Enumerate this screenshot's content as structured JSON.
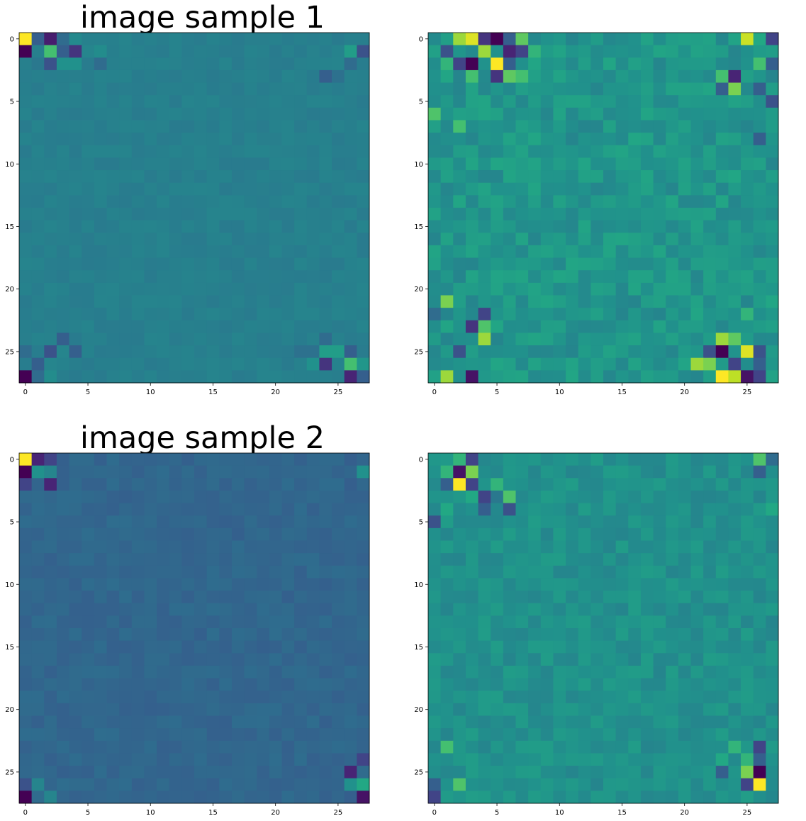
{
  "figure": {
    "titles": [
      "image sample 1",
      "",
      "image sample 2",
      ""
    ]
  },
  "chart_data": [
    {
      "type": "heatmap",
      "title": "image sample 1",
      "rows": 28,
      "cols": 28,
      "xticks": [
        0,
        5,
        10,
        15,
        20,
        25
      ],
      "yticks": [
        0,
        5,
        10,
        15,
        20,
        25
      ],
      "colormap": "viridis",
      "vrange": [
        0,
        1
      ],
      "base": 0.43,
      "noise": 0.02,
      "cells": [
        [
          0,
          0,
          1.0
        ],
        [
          0,
          1,
          0.3
        ],
        [
          0,
          2,
          0.08
        ],
        [
          0,
          3,
          0.35
        ],
        [
          0,
          4,
          0.47
        ],
        [
          1,
          0,
          0.0
        ],
        [
          1,
          1,
          0.43
        ],
        [
          1,
          2,
          0.7
        ],
        [
          1,
          3,
          0.3
        ],
        [
          1,
          4,
          0.15
        ],
        [
          1,
          5,
          0.45
        ],
        [
          1,
          6,
          0.48
        ],
        [
          1,
          26,
          0.55
        ],
        [
          1,
          27,
          0.25
        ],
        [
          2,
          1,
          0.4
        ],
        [
          2,
          2,
          0.25
        ],
        [
          2,
          3,
          0.5
        ],
        [
          2,
          4,
          0.5
        ],
        [
          2,
          6,
          0.35
        ],
        [
          2,
          26,
          0.35
        ],
        [
          3,
          24,
          0.3
        ],
        [
          3,
          25,
          0.37
        ],
        [
          24,
          3,
          0.3
        ],
        [
          24,
          24,
          0.35
        ],
        [
          25,
          0,
          0.35
        ],
        [
          25,
          2,
          0.25
        ],
        [
          25,
          3,
          0.45
        ],
        [
          25,
          4,
          0.3
        ],
        [
          25,
          22,
          0.37
        ],
        [
          25,
          23,
          0.37
        ],
        [
          25,
          24,
          0.55
        ],
        [
          25,
          25,
          0.55
        ],
        [
          25,
          26,
          0.3
        ],
        [
          26,
          1,
          0.3
        ],
        [
          26,
          2,
          0.45
        ],
        [
          26,
          23,
          0.5
        ],
        [
          26,
          24,
          0.15
        ],
        [
          26,
          26,
          0.7
        ],
        [
          26,
          27,
          0.52
        ],
        [
          27,
          0,
          0.0
        ],
        [
          27,
          1,
          0.35
        ],
        [
          27,
          2,
          0.48
        ],
        [
          27,
          26,
          0.1
        ],
        [
          27,
          27,
          0.3
        ]
      ]
    },
    {
      "type": "heatmap",
      "title": "",
      "rows": 28,
      "cols": 28,
      "xticks": [
        0,
        5,
        10,
        15,
        20,
        25
      ],
      "yticks": [
        0,
        5,
        10,
        15,
        20,
        25
      ],
      "colormap": "viridis",
      "vrange": [
        0,
        1
      ],
      "base": 0.52,
      "noise": 0.07,
      "cells": [
        [
          0,
          2,
          0.85
        ],
        [
          0,
          3,
          0.95
        ],
        [
          0,
          4,
          0.15
        ],
        [
          0,
          5,
          0.0
        ],
        [
          0,
          6,
          0.3
        ],
        [
          0,
          7,
          0.75
        ],
        [
          0,
          25,
          0.92
        ],
        [
          0,
          26,
          0.6
        ],
        [
          0,
          27,
          0.2
        ],
        [
          1,
          1,
          0.25
        ],
        [
          1,
          4,
          0.85
        ],
        [
          1,
          5,
          0.5
        ],
        [
          1,
          6,
          0.1
        ],
        [
          1,
          7,
          0.2
        ],
        [
          1,
          8,
          0.65
        ],
        [
          1,
          24,
          0.45
        ],
        [
          1,
          27,
          0.55
        ],
        [
          2,
          1,
          0.65
        ],
        [
          2,
          2,
          0.2
        ],
        [
          2,
          3,
          0.0
        ],
        [
          2,
          5,
          1.0
        ],
        [
          2,
          6,
          0.3
        ],
        [
          2,
          26,
          0.7
        ],
        [
          2,
          27,
          0.3
        ],
        [
          3,
          2,
          0.45
        ],
        [
          3,
          3,
          0.7
        ],
        [
          3,
          5,
          0.15
        ],
        [
          3,
          6,
          0.75
        ],
        [
          3,
          7,
          0.7
        ],
        [
          3,
          23,
          0.7
        ],
        [
          3,
          24,
          0.1
        ],
        [
          3,
          27,
          0.45
        ],
        [
          4,
          23,
          0.3
        ],
        [
          4,
          24,
          0.8
        ],
        [
          4,
          26,
          0.3
        ],
        [
          5,
          27,
          0.25
        ],
        [
          6,
          0,
          0.72
        ],
        [
          7,
          2,
          0.7
        ],
        [
          8,
          26,
          0.3
        ],
        [
          21,
          1,
          0.8
        ],
        [
          22,
          0,
          0.35
        ],
        [
          22,
          4,
          0.2
        ],
        [
          22,
          25,
          0.65
        ],
        [
          23,
          3,
          0.15
        ],
        [
          23,
          4,
          0.72
        ],
        [
          24,
          4,
          0.85
        ],
        [
          24,
          23,
          0.85
        ],
        [
          24,
          24,
          0.75
        ],
        [
          25,
          2,
          0.25
        ],
        [
          25,
          22,
          0.25
        ],
        [
          25,
          23,
          0.0
        ],
        [
          25,
          25,
          0.95
        ],
        [
          25,
          26,
          0.25
        ],
        [
          26,
          21,
          0.85
        ],
        [
          26,
          22,
          0.8
        ],
        [
          26,
          24,
          0.2
        ],
        [
          26,
          26,
          0.3
        ],
        [
          27,
          1,
          0.85
        ],
        [
          27,
          3,
          0.05
        ],
        [
          27,
          23,
          1.0
        ],
        [
          27,
          24,
          0.9
        ],
        [
          27,
          25,
          0.05
        ],
        [
          27,
          26,
          0.2
        ]
      ]
    },
    {
      "type": "heatmap",
      "title": "image sample 2",
      "rows": 28,
      "cols": 28,
      "xticks": [
        0,
        5,
        10,
        15,
        20,
        25
      ],
      "yticks": [
        0,
        5,
        10,
        15,
        20,
        25
      ],
      "colormap": "viridis",
      "vrange": [
        0,
        1
      ],
      "base": 0.33,
      "noise": 0.025,
      "cells": [
        [
          0,
          0,
          1.0
        ],
        [
          0,
          1,
          0.1
        ],
        [
          0,
          2,
          0.2
        ],
        [
          0,
          26,
          0.3
        ],
        [
          1,
          0,
          0.0
        ],
        [
          1,
          1,
          0.5
        ],
        [
          1,
          2,
          0.45
        ],
        [
          1,
          27,
          0.5
        ],
        [
          2,
          0,
          0.2
        ],
        [
          2,
          2,
          0.1
        ],
        [
          2,
          26,
          0.3
        ],
        [
          24,
          27,
          0.2
        ],
        [
          25,
          26,
          0.1
        ],
        [
          26,
          0,
          0.25
        ],
        [
          26,
          1,
          0.45
        ],
        [
          26,
          26,
          0.5
        ],
        [
          26,
          27,
          0.6
        ],
        [
          27,
          0,
          0.0
        ],
        [
          27,
          1,
          0.35
        ],
        [
          27,
          2,
          0.45
        ],
        [
          27,
          26,
          0.3
        ],
        [
          27,
          27,
          0.05
        ]
      ]
    },
    {
      "type": "heatmap",
      "title": "",
      "rows": 28,
      "cols": 28,
      "xticks": [
        0,
        5,
        10,
        15,
        20,
        25
      ],
      "yticks": [
        0,
        5,
        10,
        15,
        20,
        25
      ],
      "colormap": "viridis",
      "vrange": [
        0,
        1
      ],
      "base": 0.5,
      "noise": 0.05,
      "cells": [
        [
          0,
          2,
          0.65
        ],
        [
          0,
          3,
          0.2
        ],
        [
          0,
          26,
          0.72
        ],
        [
          0,
          27,
          0.35
        ],
        [
          1,
          1,
          0.65
        ],
        [
          1,
          2,
          0.05
        ],
        [
          1,
          3,
          0.8
        ],
        [
          1,
          26,
          0.3
        ],
        [
          2,
          1,
          0.3
        ],
        [
          2,
          2,
          1.0
        ],
        [
          2,
          3,
          0.2
        ],
        [
          2,
          5,
          0.65
        ],
        [
          3,
          3,
          0.6
        ],
        [
          3,
          4,
          0.2
        ],
        [
          3,
          5,
          0.4
        ],
        [
          3,
          6,
          0.72
        ],
        [
          4,
          1,
          0.6
        ],
        [
          4,
          3,
          0.5
        ],
        [
          4,
          4,
          0.3
        ],
        [
          4,
          6,
          0.25
        ],
        [
          4,
          27,
          0.6
        ],
        [
          5,
          0,
          0.25
        ],
        [
          23,
          1,
          0.7
        ],
        [
          23,
          24,
          0.65
        ],
        [
          23,
          26,
          0.2
        ],
        [
          24,
          23,
          0.6
        ],
        [
          24,
          25,
          0.65
        ],
        [
          24,
          26,
          0.3
        ],
        [
          25,
          23,
          0.3
        ],
        [
          25,
          25,
          0.8
        ],
        [
          25,
          26,
          0.0
        ],
        [
          26,
          0,
          0.3
        ],
        [
          26,
          2,
          0.72
        ],
        [
          26,
          25,
          0.2
        ],
        [
          26,
          26,
          1.0
        ],
        [
          27,
          0,
          0.2
        ],
        [
          27,
          3,
          0.55
        ],
        [
          27,
          25,
          0.55
        ]
      ]
    }
  ]
}
